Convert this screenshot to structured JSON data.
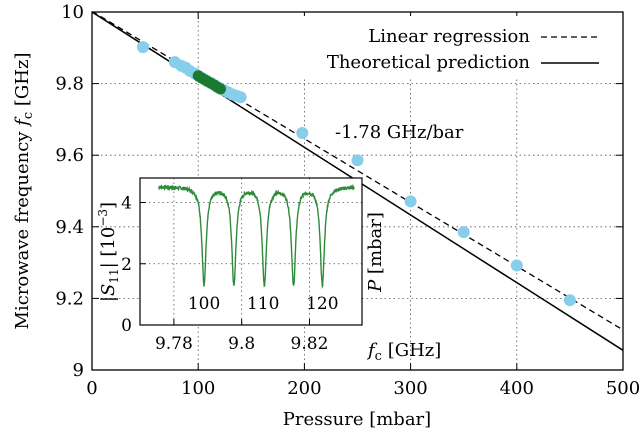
{
  "chart_data": {
    "type": "scatter",
    "xlabel": "Pressure [mbar]",
    "ylabel": "Microwave frequency",
    "ylabel_symbol": "f",
    "ylabel_sub": "c",
    "ylabel_unit": "[GHz]",
    "xlim": [
      0,
      500
    ],
    "ylim": [
      9.0,
      10.0
    ],
    "x_ticks": [
      0,
      100,
      200,
      300,
      400,
      500
    ],
    "y_ticks": [
      {
        "value": 9.0,
        "label": "9"
      },
      {
        "value": 9.2,
        "label": "9.2"
      },
      {
        "value": 9.4,
        "label": "9.4"
      },
      {
        "value": 9.6,
        "label": "9.6"
      },
      {
        "value": 9.8,
        "label": "9.8"
      },
      {
        "value": 10.0,
        "label": "10"
      }
    ],
    "grid": true,
    "legend_position": "top-right",
    "annotation": "-1.78 GHz/bar",
    "series": [
      {
        "name": "Linear regression",
        "type": "line",
        "style": "dashed",
        "color": "#000000",
        "x": [
          0,
          500
        ],
        "y": [
          10.002,
          9.112
        ]
      },
      {
        "name": "Theoretical prediction",
        "type": "line",
        "style": "solid",
        "color": "#000000",
        "x": [
          0,
          500
        ],
        "y": [
          10.0,
          9.055
        ]
      },
      {
        "type": "scatter",
        "color": "#87ceeb",
        "x": [
          48,
          78,
          84,
          88,
          92,
          97,
          101,
          104,
          108,
          112,
          116,
          120,
          124,
          128,
          132,
          136,
          140,
          198,
          250,
          300,
          350,
          400,
          450
        ],
        "y": [
          9.902,
          9.86,
          9.85,
          9.845,
          9.836,
          9.828,
          9.82,
          9.815,
          9.808,
          9.802,
          9.795,
          9.788,
          9.782,
          9.776,
          9.77,
          9.766,
          9.762,
          9.662,
          9.586,
          9.471,
          9.385,
          9.292,
          9.195
        ]
      },
      {
        "type": "scatter",
        "color": "#1a7a30",
        "x": [
          100,
          103,
          106,
          109,
          112,
          115,
          118,
          121
        ],
        "y": [
          9.822,
          9.816,
          9.811,
          9.806,
          9.801,
          9.796,
          9.79,
          9.785
        ]
      }
    ],
    "inset": {
      "type": "line",
      "xlabel_symbol": "f",
      "xlabel_sub": "c",
      "xlabel_unit": "[GHz]",
      "ylabel": "|S11| [10^-3]",
      "ylabel_parts": {
        "open": "|",
        "symbol": "S",
        "sub": "11",
        "close": "| [10",
        "sup": "−3",
        "end": "]"
      },
      "xlim": [
        9.77,
        9.8355
      ],
      "ylim": [
        0,
        4.8
      ],
      "x_ticks": [
        {
          "value": 9.78,
          "label": "9.78"
        },
        {
          "value": 9.8,
          "label": "9.8"
        },
        {
          "value": 9.82,
          "label": "9.82"
        }
      ],
      "y_ticks": [
        0,
        2,
        4
      ],
      "top_axis_label": "P [mbar]",
      "top_axis_label_symbol": "P",
      "top_axis_label_unit": "[mbar]",
      "top_ticks": [
        {
          "value": 100,
          "label": "100"
        },
        {
          "value": 110,
          "label": "110"
        },
        {
          "value": 120,
          "label": "120"
        }
      ],
      "baseline": 4.52,
      "resonances": [
        {
          "f": 9.7889,
          "depth": 3.2
        },
        {
          "f": 9.7977,
          "depth": 3.2
        },
        {
          "f": 9.8067,
          "depth": 3.2
        },
        {
          "f": 9.8153,
          "depth": 3.2
        },
        {
          "f": 9.8238,
          "depth": 3.2
        }
      ],
      "color": "#2e8b3a"
    }
  }
}
